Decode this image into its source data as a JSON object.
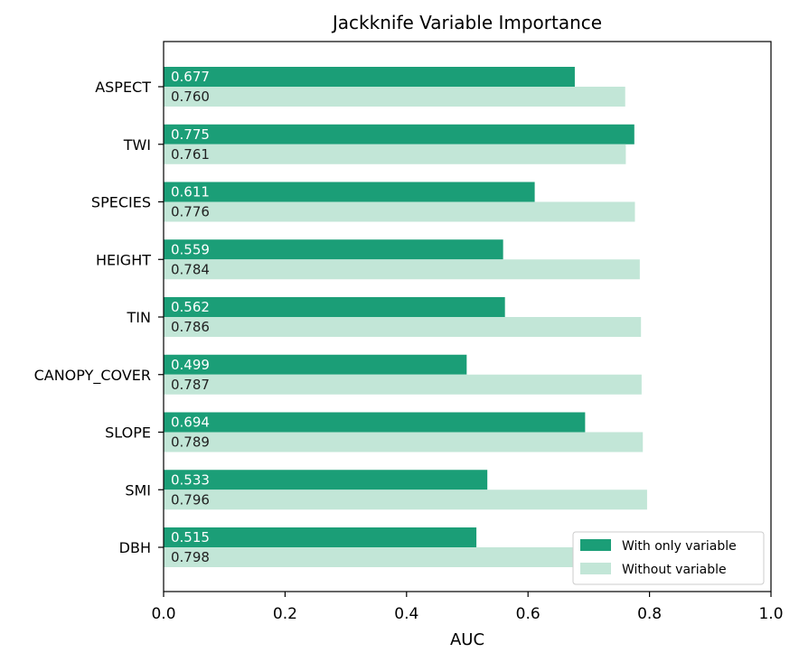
{
  "chart_data": {
    "type": "bar",
    "orientation": "horizontal",
    "title": "Jackknife Variable Importance",
    "xlabel": "AUC",
    "ylabel": "",
    "xlim": [
      0.0,
      1.0
    ],
    "xticks": [
      "0.0",
      "0.2",
      "0.4",
      "0.6",
      "0.8",
      "1.0"
    ],
    "categories": [
      "ASPECT",
      "TWI",
      "SPECIES",
      "HEIGHT",
      "TIN",
      "CANOPY_COVER",
      "SLOPE",
      "SMI",
      "DBH"
    ],
    "series": [
      {
        "name": "With only variable",
        "color": "#1b9e77",
        "values": [
          0.677,
          0.775,
          0.611,
          0.559,
          0.562,
          0.499,
          0.694,
          0.533,
          0.515
        ],
        "labels": [
          "0.677",
          "0.775",
          "0.611",
          "0.559",
          "0.562",
          "0.499",
          "0.694",
          "0.533",
          "0.515"
        ]
      },
      {
        "name": "Without variable",
        "color": "#c2e6d7",
        "values": [
          0.76,
          0.761,
          0.776,
          0.784,
          0.786,
          0.787,
          0.789,
          0.796,
          0.798
        ],
        "labels": [
          "0.760",
          "0.761",
          "0.776",
          "0.784",
          "0.786",
          "0.787",
          "0.789",
          "0.796",
          "0.798"
        ]
      }
    ],
    "legend_position": "lower-right",
    "grid": false
  }
}
